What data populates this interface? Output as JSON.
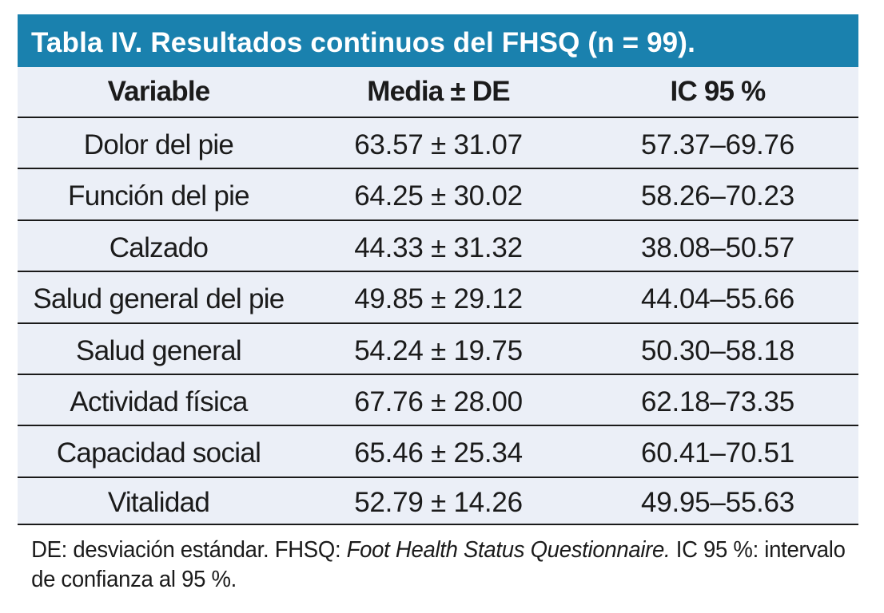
{
  "colors": {
    "title_bar_bg": "#1A81AE",
    "title_text": "#FFFFFF",
    "row_bg": "#EBEFF7",
    "rule_line": "#1A1A1A",
    "body_text": "#1B1B1B",
    "page_bg": "#FFFFFF"
  },
  "table": {
    "title": "Tabla IV. Resultados continuos del FHSQ (n = 99).",
    "columns": [
      "Variable",
      "Media ± DE",
      "IC 95 %"
    ],
    "rows": [
      [
        "Dolor del pie",
        "63.57 ± 31.07",
        "57.37–69.76"
      ],
      [
        "Función del pie",
        "64.25 ± 30.02",
        "58.26–70.23"
      ],
      [
        "Calzado",
        "44.33 ± 31.32",
        "38.08–50.57"
      ],
      [
        "Salud general del pie",
        "49.85 ± 29.12",
        "44.04–55.66"
      ],
      [
        "Salud general",
        "54.24 ± 19.75",
        "50.30–58.18"
      ],
      [
        "Actividad física",
        "67.76 ± 28.00",
        "62.18–73.35"
      ],
      [
        "Capacidad social",
        "65.46 ± 25.34",
        "60.41–70.51"
      ],
      [
        "Vitalidad",
        "52.79 ± 14.26",
        "49.95–55.63"
      ]
    ],
    "footnote_parts": [
      {
        "text": "DE: desviación estándar. FHSQ: ",
        "italic": false
      },
      {
        "text": "Foot Health Status Questionnaire.",
        "italic": true
      },
      {
        "text": " IC 95 %: intervalo de confianza al 95 %.",
        "italic": false
      }
    ]
  },
  "chart_data": {
    "type": "table",
    "title": "Tabla IV. Resultados continuos del FHSQ (n = 99).",
    "columns": [
      "Variable",
      "Media ± DE",
      "IC 95 %"
    ],
    "rows": [
      {
        "variable": "Dolor del pie",
        "media": 63.57,
        "de": 31.07,
        "ic95_low": 57.37,
        "ic95_high": 69.76
      },
      {
        "variable": "Función del pie",
        "media": 64.25,
        "de": 30.02,
        "ic95_low": 58.26,
        "ic95_high": 70.23
      },
      {
        "variable": "Calzado",
        "media": 44.33,
        "de": 31.32,
        "ic95_low": 38.08,
        "ic95_high": 50.57
      },
      {
        "variable": "Salud general del pie",
        "media": 49.85,
        "de": 29.12,
        "ic95_low": 44.04,
        "ic95_high": 55.66
      },
      {
        "variable": "Salud general",
        "media": 54.24,
        "de": 19.75,
        "ic95_low": 50.3,
        "ic95_high": 58.18
      },
      {
        "variable": "Actividad física",
        "media": 67.76,
        "de": 28.0,
        "ic95_low": 62.18,
        "ic95_high": 73.35
      },
      {
        "variable": "Capacidad social",
        "media": 65.46,
        "de": 25.34,
        "ic95_low": 60.41,
        "ic95_high": 70.51
      },
      {
        "variable": "Vitalidad",
        "media": 52.79,
        "de": 14.26,
        "ic95_low": 49.95,
        "ic95_high": 55.63
      }
    ]
  }
}
